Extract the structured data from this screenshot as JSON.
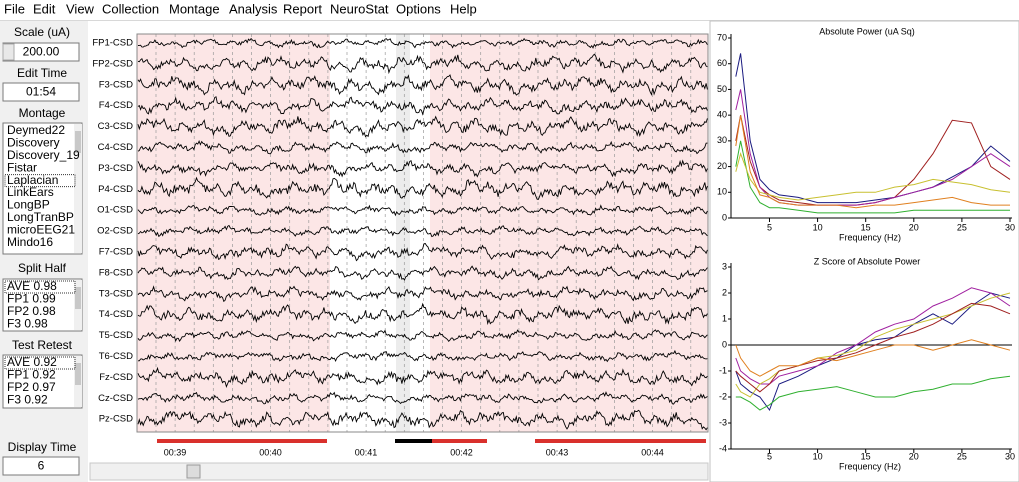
{
  "menu": [
    "File",
    "Edit",
    "View",
    "Collection",
    "Montage",
    "Analysis",
    "Report",
    "NeuroStat",
    "Options",
    "Help"
  ],
  "left_panel": {
    "scale_label": "Scale (uA)",
    "scale_value": "200.00",
    "edit_time_label": "Edit Time",
    "edit_time_value": "01:54",
    "montage_label": "Montage",
    "montage_items": [
      "Deymed22",
      "Discovery",
      "Discovery_19",
      "Fistar",
      "Laplacian",
      "LinkEars",
      "LongBP",
      "LongTranBP",
      "microEEG21",
      "Mindo16"
    ],
    "split_half_label": "Split Half",
    "split_half_items": [
      "AVE  0.98",
      "FP1  0.99",
      "FP2  0.98",
      "F3  0.98"
    ],
    "test_retest_label": "Test Retest",
    "test_retest_items": [
      "AVE  0.92",
      "FP1  0.92",
      "FP2  0.97",
      "F3  0.92"
    ],
    "display_time_label": "Display Time",
    "display_time_value": "6"
  },
  "eeg": {
    "channels": [
      "FP1-CSD",
      "FP2-CSD",
      "F3-CSD",
      "F4-CSD",
      "C3-CSD",
      "C4-CSD",
      "P3-CSD",
      "P4-CSD",
      "O1-CSD",
      "O2-CSD",
      "F7-CSD",
      "F8-CSD",
      "T3-CSD",
      "T4-CSD",
      "T5-CSD",
      "T6-CSD",
      "Fz-CSD",
      "Cz-CSD",
      "Pz-CSD"
    ],
    "time_labels": [
      "00:39",
      "00:40",
      "00:41",
      "00:42",
      "00:43",
      "00:44"
    ]
  },
  "chart_data": [
    {
      "type": "line",
      "title": "Absolute Power (uA Sq)",
      "x_label": "Frequency (Hz)",
      "x": [
        1.5,
        2,
        3,
        4,
        5,
        6,
        8,
        10,
        12,
        14,
        16,
        18,
        20,
        22,
        24,
        26,
        28,
        30
      ],
      "xlim": [
        1,
        30
      ],
      "xticks": [
        5,
        10,
        15,
        20,
        25,
        30
      ],
      "ylim": [
        0,
        70
      ],
      "yticks": [
        0,
        10,
        20,
        30,
        40,
        50,
        60,
        70
      ],
      "series": [
        {
          "color": "#1a1a80",
          "values": [
            55,
            64,
            30,
            15,
            11,
            9,
            8,
            6,
            6,
            6,
            7,
            8,
            10,
            12,
            16,
            20,
            28,
            22
          ]
        },
        {
          "color": "#a02020",
          "values": [
            30,
            40,
            22,
            12,
            9,
            7,
            6,
            5,
            5,
            5,
            6,
            8,
            15,
            25,
            38,
            37,
            20,
            15
          ]
        },
        {
          "color": "#a020a0",
          "values": [
            42,
            50,
            25,
            12,
            8,
            6,
            5,
            5,
            5,
            5,
            6,
            8,
            10,
            12,
            15,
            20,
            25,
            20
          ]
        },
        {
          "color": "#30b030",
          "values": [
            20,
            30,
            12,
            6,
            4,
            4,
            3,
            2,
            2,
            2,
            2,
            2,
            3,
            3,
            3,
            3,
            3,
            3
          ]
        },
        {
          "color": "#c8c030",
          "values": [
            18,
            25,
            15,
            10,
            9,
            8,
            7,
            8,
            9,
            10,
            10,
            12,
            13,
            15,
            14,
            13,
            11,
            10
          ]
        },
        {
          "color": "#e08020",
          "values": [
            28,
            40,
            18,
            9,
            8,
            6,
            5,
            5,
            5,
            4,
            5,
            5,
            6,
            7,
            8,
            6,
            5,
            5
          ]
        }
      ]
    },
    {
      "type": "line",
      "title": "Z Score of Absolute Power",
      "x_label": "Frequency (Hz)",
      "x": [
        1.5,
        2,
        3,
        4,
        5,
        6,
        8,
        10,
        12,
        14,
        16,
        18,
        20,
        22,
        24,
        26,
        28,
        30
      ],
      "xlim": [
        1,
        30
      ],
      "xticks": [
        5,
        10,
        15,
        20,
        25,
        30
      ],
      "ylim": [
        -4,
        3
      ],
      "yticks": [
        -4,
        -3,
        -2,
        -1,
        0,
        1,
        2,
        3
      ],
      "series": [
        {
          "color": "#1a1a80",
          "values": [
            -1,
            -1.5,
            -1.8,
            -2,
            -2.5,
            -1.5,
            -1.2,
            -0.8,
            -0.5,
            0,
            0.2,
            0.3,
            0.8,
            1.2,
            0.8,
            1.5,
            2,
            1.8
          ]
        },
        {
          "color": "#a020a0",
          "values": [
            -0.5,
            -1,
            -1.3,
            -1.5,
            -1.5,
            -1.2,
            -1,
            -0.8,
            -0.3,
            0,
            0.5,
            0.8,
            1,
            1.5,
            1.8,
            2.2,
            2,
            1.5
          ]
        },
        {
          "color": "#30b030",
          "values": [
            -2,
            -2,
            -2.2,
            -2.5,
            -2.3,
            -2,
            -1.8,
            -1.7,
            -1.6,
            -1.8,
            -2,
            -2,
            -1.8,
            -1.7,
            -1.5,
            -1.5,
            -1.3,
            -1.2
          ]
        },
        {
          "color": "#c8c030",
          "values": [
            -1.5,
            -1.8,
            -2,
            -1.5,
            -1.3,
            -1,
            -0.8,
            -0.5,
            -0.4,
            -0.2,
            0.3,
            0.6,
            0.8,
            1,
            1.2,
            1.5,
            1.8,
            2
          ]
        },
        {
          "color": "#a02020",
          "values": [
            -1,
            -1.2,
            -1.5,
            -1.8,
            -1.5,
            -1,
            -0.8,
            -0.6,
            -0.5,
            -0.3,
            0,
            0.3,
            0.5,
            0.8,
            1.2,
            1.6,
            1.5,
            1.2
          ]
        },
        {
          "color": "#e08020",
          "values": [
            0,
            -0.5,
            -1,
            -1.2,
            -1,
            -0.8,
            -0.8,
            -0.5,
            -0.6,
            -0.4,
            -0.2,
            0,
            0,
            -0.2,
            0,
            0.2,
            0,
            -0.2
          ]
        }
      ]
    }
  ]
}
